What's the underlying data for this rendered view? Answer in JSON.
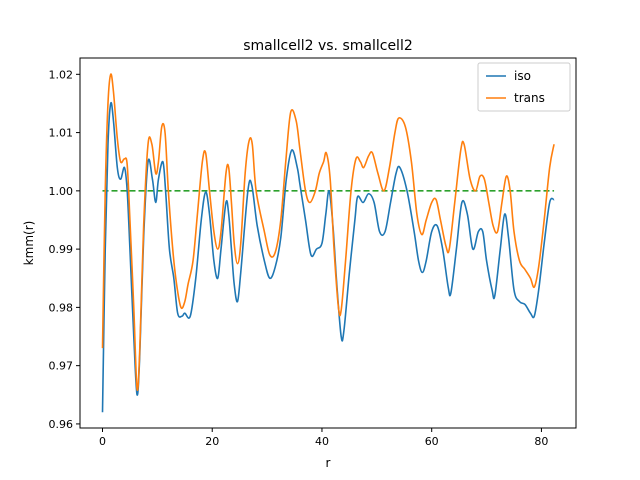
{
  "chart_data": {
    "type": "line",
    "title": "smallcell2 vs. smallcell2",
    "xlabel": "r",
    "ylabel": "kmm(r)",
    "xlim": [
      -4.1,
      86.3
    ],
    "ylim": [
      0.9593,
      1.0228
    ],
    "xticks": [
      0,
      20,
      40,
      60,
      80
    ],
    "xtick_labels": [
      "0",
      "20",
      "40",
      "60",
      "80"
    ],
    "yticks": [
      0.96,
      0.97,
      0.98,
      0.99,
      1.0,
      1.01,
      1.02
    ],
    "ytick_labels": [
      "0.96",
      "0.97",
      "0.98",
      "0.99",
      "1.00",
      "1.01",
      "1.02"
    ],
    "legend_position": "top-right",
    "grid": false,
    "series": [
      {
        "name": "iso",
        "color": "#1f77b4",
        "style": "solid",
        "points": [
          [
            0,
            0.962
          ],
          [
            0.5,
            0.99
          ],
          [
            1,
            1.008
          ],
          [
            1.5,
            1.015
          ],
          [
            2,
            1.012
          ],
          [
            2.7,
            1.004
          ],
          [
            3.3,
            1.002
          ],
          [
            4,
            1.004
          ],
          [
            4.5,
            1.0
          ],
          [
            5,
            0.99
          ],
          [
            5.7,
            0.975
          ],
          [
            6.3,
            0.965
          ],
          [
            6.8,
            0.972
          ],
          [
            7.5,
            0.992
          ],
          [
            8.3,
            1.005
          ],
          [
            9.1,
            1.002
          ],
          [
            9.7,
            0.998
          ],
          [
            10.2,
            1.002
          ],
          [
            11,
            1.005
          ],
          [
            11.5,
            1.0
          ],
          [
            12.2,
            0.99
          ],
          [
            13,
            0.985
          ],
          [
            13.7,
            0.979
          ],
          [
            14.5,
            0.9785
          ],
          [
            15,
            0.979
          ],
          [
            16,
            0.9785
          ],
          [
            17,
            0.985
          ],
          [
            18,
            0.995
          ],
          [
            18.8,
            0.9998
          ],
          [
            19.5,
            0.996
          ],
          [
            20.3,
            0.988
          ],
          [
            21,
            0.985
          ],
          [
            21.6,
            0.99
          ],
          [
            22.5,
            0.998
          ],
          [
            23,
            0.996
          ],
          [
            23.5,
            0.99
          ],
          [
            24,
            0.984
          ],
          [
            24.6,
            0.981
          ],
          [
            25.2,
            0.986
          ],
          [
            26.5,
            1.0
          ],
          [
            27.2,
            1.001
          ],
          [
            28.2,
            0.994
          ],
          [
            29.5,
            0.988
          ],
          [
            30.5,
            0.985
          ],
          [
            31.5,
            0.987
          ],
          [
            32.5,
            0.992
          ],
          [
            33.5,
            1.002
          ],
          [
            34.5,
            1.007
          ],
          [
            35.5,
            1.004
          ],
          [
            36,
            1.001
          ],
          [
            37,
            0.995
          ],
          [
            38,
            0.989
          ],
          [
            39,
            0.99
          ],
          [
            40,
            0.991
          ],
          [
            40.7,
            0.996
          ],
          [
            41.3,
            1.0
          ],
          [
            42,
            0.994
          ],
          [
            42.7,
            0.984
          ],
          [
            43.5,
            0.975
          ],
          [
            44,
            0.976
          ],
          [
            45,
            0.986
          ],
          [
            46,
            0.995
          ],
          [
            46.5,
            0.999
          ],
          [
            47.5,
            0.998
          ],
          [
            48.5,
            0.9995
          ],
          [
            49.5,
            0.998
          ],
          [
            50.5,
            0.993
          ],
          [
            51.5,
            0.993
          ],
          [
            52.5,
            0.998
          ],
          [
            53.5,
            1.003
          ],
          [
            54.2,
            1.004
          ],
          [
            55.5,
            1.0
          ],
          [
            56.8,
            0.993
          ],
          [
            57.6,
            0.988
          ],
          [
            58.3,
            0.986
          ],
          [
            59,
            0.988
          ],
          [
            60,
            0.993
          ],
          [
            61,
            0.994
          ],
          [
            62,
            0.99
          ],
          [
            63,
            0.9835
          ],
          [
            63.5,
            0.9825
          ],
          [
            64.5,
            0.99
          ],
          [
            65.5,
            0.998
          ],
          [
            66.5,
            0.996
          ],
          [
            67.5,
            0.99
          ],
          [
            68.5,
            0.993
          ],
          [
            69.3,
            0.993
          ],
          [
            70,
            0.988
          ],
          [
            71,
            0.983
          ],
          [
            71.5,
            0.982
          ],
          [
            72.5,
            0.99
          ],
          [
            73.3,
            0.996
          ],
          [
            74,
            0.992
          ],
          [
            75,
            0.983
          ],
          [
            76,
            0.981
          ],
          [
            77,
            0.9805
          ],
          [
            78,
            0.979
          ],
          [
            78.7,
            0.9785
          ],
          [
            79.5,
            0.983
          ],
          [
            80.5,
            0.991
          ],
          [
            81.5,
            0.998
          ],
          [
            82.3,
            0.9985
          ]
        ]
      },
      {
        "name": "trans",
        "color": "#ff7f0e",
        "style": "solid",
        "points": [
          [
            0,
            0.973
          ],
          [
            0.5,
            1.0
          ],
          [
            1,
            1.015
          ],
          [
            1.5,
            1.02
          ],
          [
            2,
            1.017
          ],
          [
            2.7,
            1.009
          ],
          [
            3.3,
            1.005
          ],
          [
            4,
            1.0055
          ],
          [
            4.5,
            1.0045
          ],
          [
            5,
            0.995
          ],
          [
            5.7,
            0.98
          ],
          [
            6.3,
            0.966
          ],
          [
            6.8,
            0.973
          ],
          [
            7.5,
            0.994
          ],
          [
            8.3,
            1.008
          ],
          [
            9,
            1.008
          ],
          [
            9.7,
            1.003
          ],
          [
            10.2,
            1.005
          ],
          [
            10.8,
            1.011
          ],
          [
            11.4,
            1.01
          ],
          [
            12,
            1.0
          ],
          [
            12.8,
            0.99
          ],
          [
            13.5,
            0.984
          ],
          [
            14.3,
            0.98
          ],
          [
            15,
            0.981
          ],
          [
            15.6,
            0.984
          ],
          [
            16.5,
            0.988
          ],
          [
            17.3,
            0.996
          ],
          [
            18.2,
            1.005
          ],
          [
            18.8,
            1.0065
          ],
          [
            19.5,
            1.0
          ],
          [
            20.3,
            0.993
          ],
          [
            21,
            0.99
          ],
          [
            21.6,
            0.993
          ],
          [
            22.5,
            1.003
          ],
          [
            23,
            1.004
          ],
          [
            23.5,
            0.998
          ],
          [
            24,
            0.991
          ],
          [
            24.6,
            0.9875
          ],
          [
            25.2,
            0.991
          ],
          [
            26,
            1.003
          ],
          [
            26.7,
            1.0085
          ],
          [
            27.3,
            1.008
          ],
          [
            28,
            1.0
          ],
          [
            29.5,
            0.993
          ],
          [
            30.5,
            0.989
          ],
          [
            31.5,
            0.9895
          ],
          [
            32.5,
            0.995
          ],
          [
            33.4,
            1.005
          ],
          [
            34.3,
            1.0135
          ],
          [
            35.3,
            1.012
          ],
          [
            36,
            1.007
          ],
          [
            37,
            1.0
          ],
          [
            37.8,
            0.998
          ],
          [
            38.8,
            1.0
          ],
          [
            39.5,
            1.003
          ],
          [
            40.3,
            1.005
          ],
          [
            40.8,
            1.0065
          ],
          [
            41.5,
            1.002
          ],
          [
            42.2,
            0.99
          ],
          [
            43,
            0.98
          ],
          [
            43.5,
            0.9795
          ],
          [
            44.3,
            0.988
          ],
          [
            45.3,
            1.0
          ],
          [
            46.2,
            1.0055
          ],
          [
            47,
            1.005
          ],
          [
            47.6,
            1.004
          ],
          [
            48.5,
            1.006
          ],
          [
            49.2,
            1.0065
          ],
          [
            50.2,
            1.003
          ],
          [
            51.3,
            1.0
          ],
          [
            52.3,
            1.004
          ],
          [
            53.3,
            1.01
          ],
          [
            54,
            1.0125
          ],
          [
            55.2,
            1.011
          ],
          [
            56.3,
            1.005
          ],
          [
            57.3,
            0.996
          ],
          [
            58.2,
            0.9925
          ],
          [
            59,
            0.995
          ],
          [
            60,
            0.998
          ],
          [
            60.8,
            0.9985
          ],
          [
            61.6,
            0.995
          ],
          [
            62.6,
            0.9905
          ],
          [
            63.2,
            0.99
          ],
          [
            64.2,
            0.998
          ],
          [
            65.3,
            1.007
          ],
          [
            65.9,
            1.008
          ],
          [
            67,
            1.002
          ],
          [
            68,
            1.0
          ],
          [
            68.8,
            1.0025
          ],
          [
            69.6,
            1.002
          ],
          [
            70.4,
            0.998
          ],
          [
            71.2,
            0.994
          ],
          [
            72,
            0.993
          ],
          [
            72.8,
            0.998
          ],
          [
            73.6,
            1.0025
          ],
          [
            74.3,
            1.0
          ],
          [
            75,
            0.993
          ],
          [
            76,
            0.988
          ],
          [
            77,
            0.9865
          ],
          [
            78,
            0.985
          ],
          [
            78.7,
            0.9835
          ],
          [
            79.5,
            0.987
          ],
          [
            80.5,
            0.995
          ],
          [
            81.5,
            1.004
          ],
          [
            82.3,
            1.008
          ]
        ]
      },
      {
        "name": "",
        "color": "#2ca02c",
        "style": "dashed",
        "points": [
          [
            0,
            1.0
          ],
          [
            82.3,
            1.0
          ]
        ]
      }
    ]
  }
}
